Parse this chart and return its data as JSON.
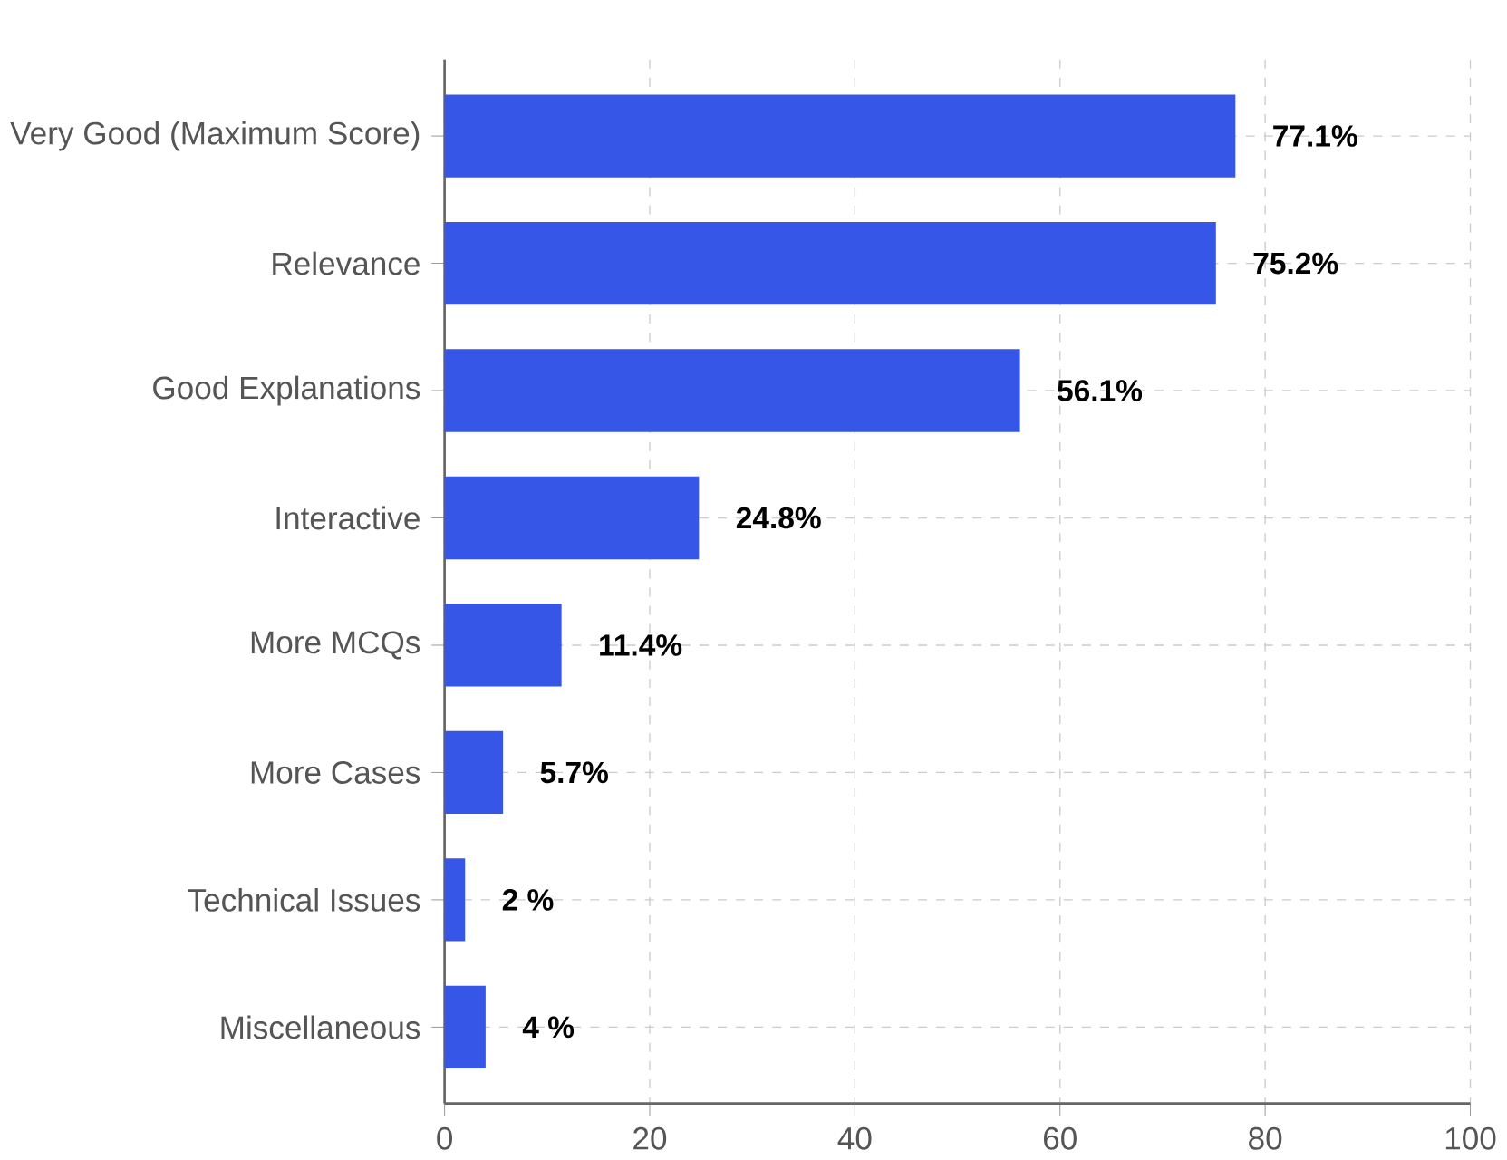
{
  "chart_data": {
    "type": "bar",
    "orientation": "horizontal",
    "categories": [
      "Very Good (Maximum Score)",
      "Relevance",
      "Good Explanations",
      "Interactive",
      "More MCQs",
      "More Cases",
      "Technical Issues",
      "Miscellaneous"
    ],
    "values": [
      77.1,
      75.2,
      56.1,
      24.8,
      11.4,
      5.7,
      2,
      4
    ],
    "value_labels": [
      "77.1%",
      "75.2%",
      "56.1%",
      "24.8%",
      "11.4%",
      "5.7%",
      "2 %",
      "4 %"
    ],
    "color": "#3656e8",
    "xlim": [
      0,
      100
    ],
    "xticks": [
      0,
      20,
      40,
      60,
      80,
      100
    ],
    "grid": true
  }
}
